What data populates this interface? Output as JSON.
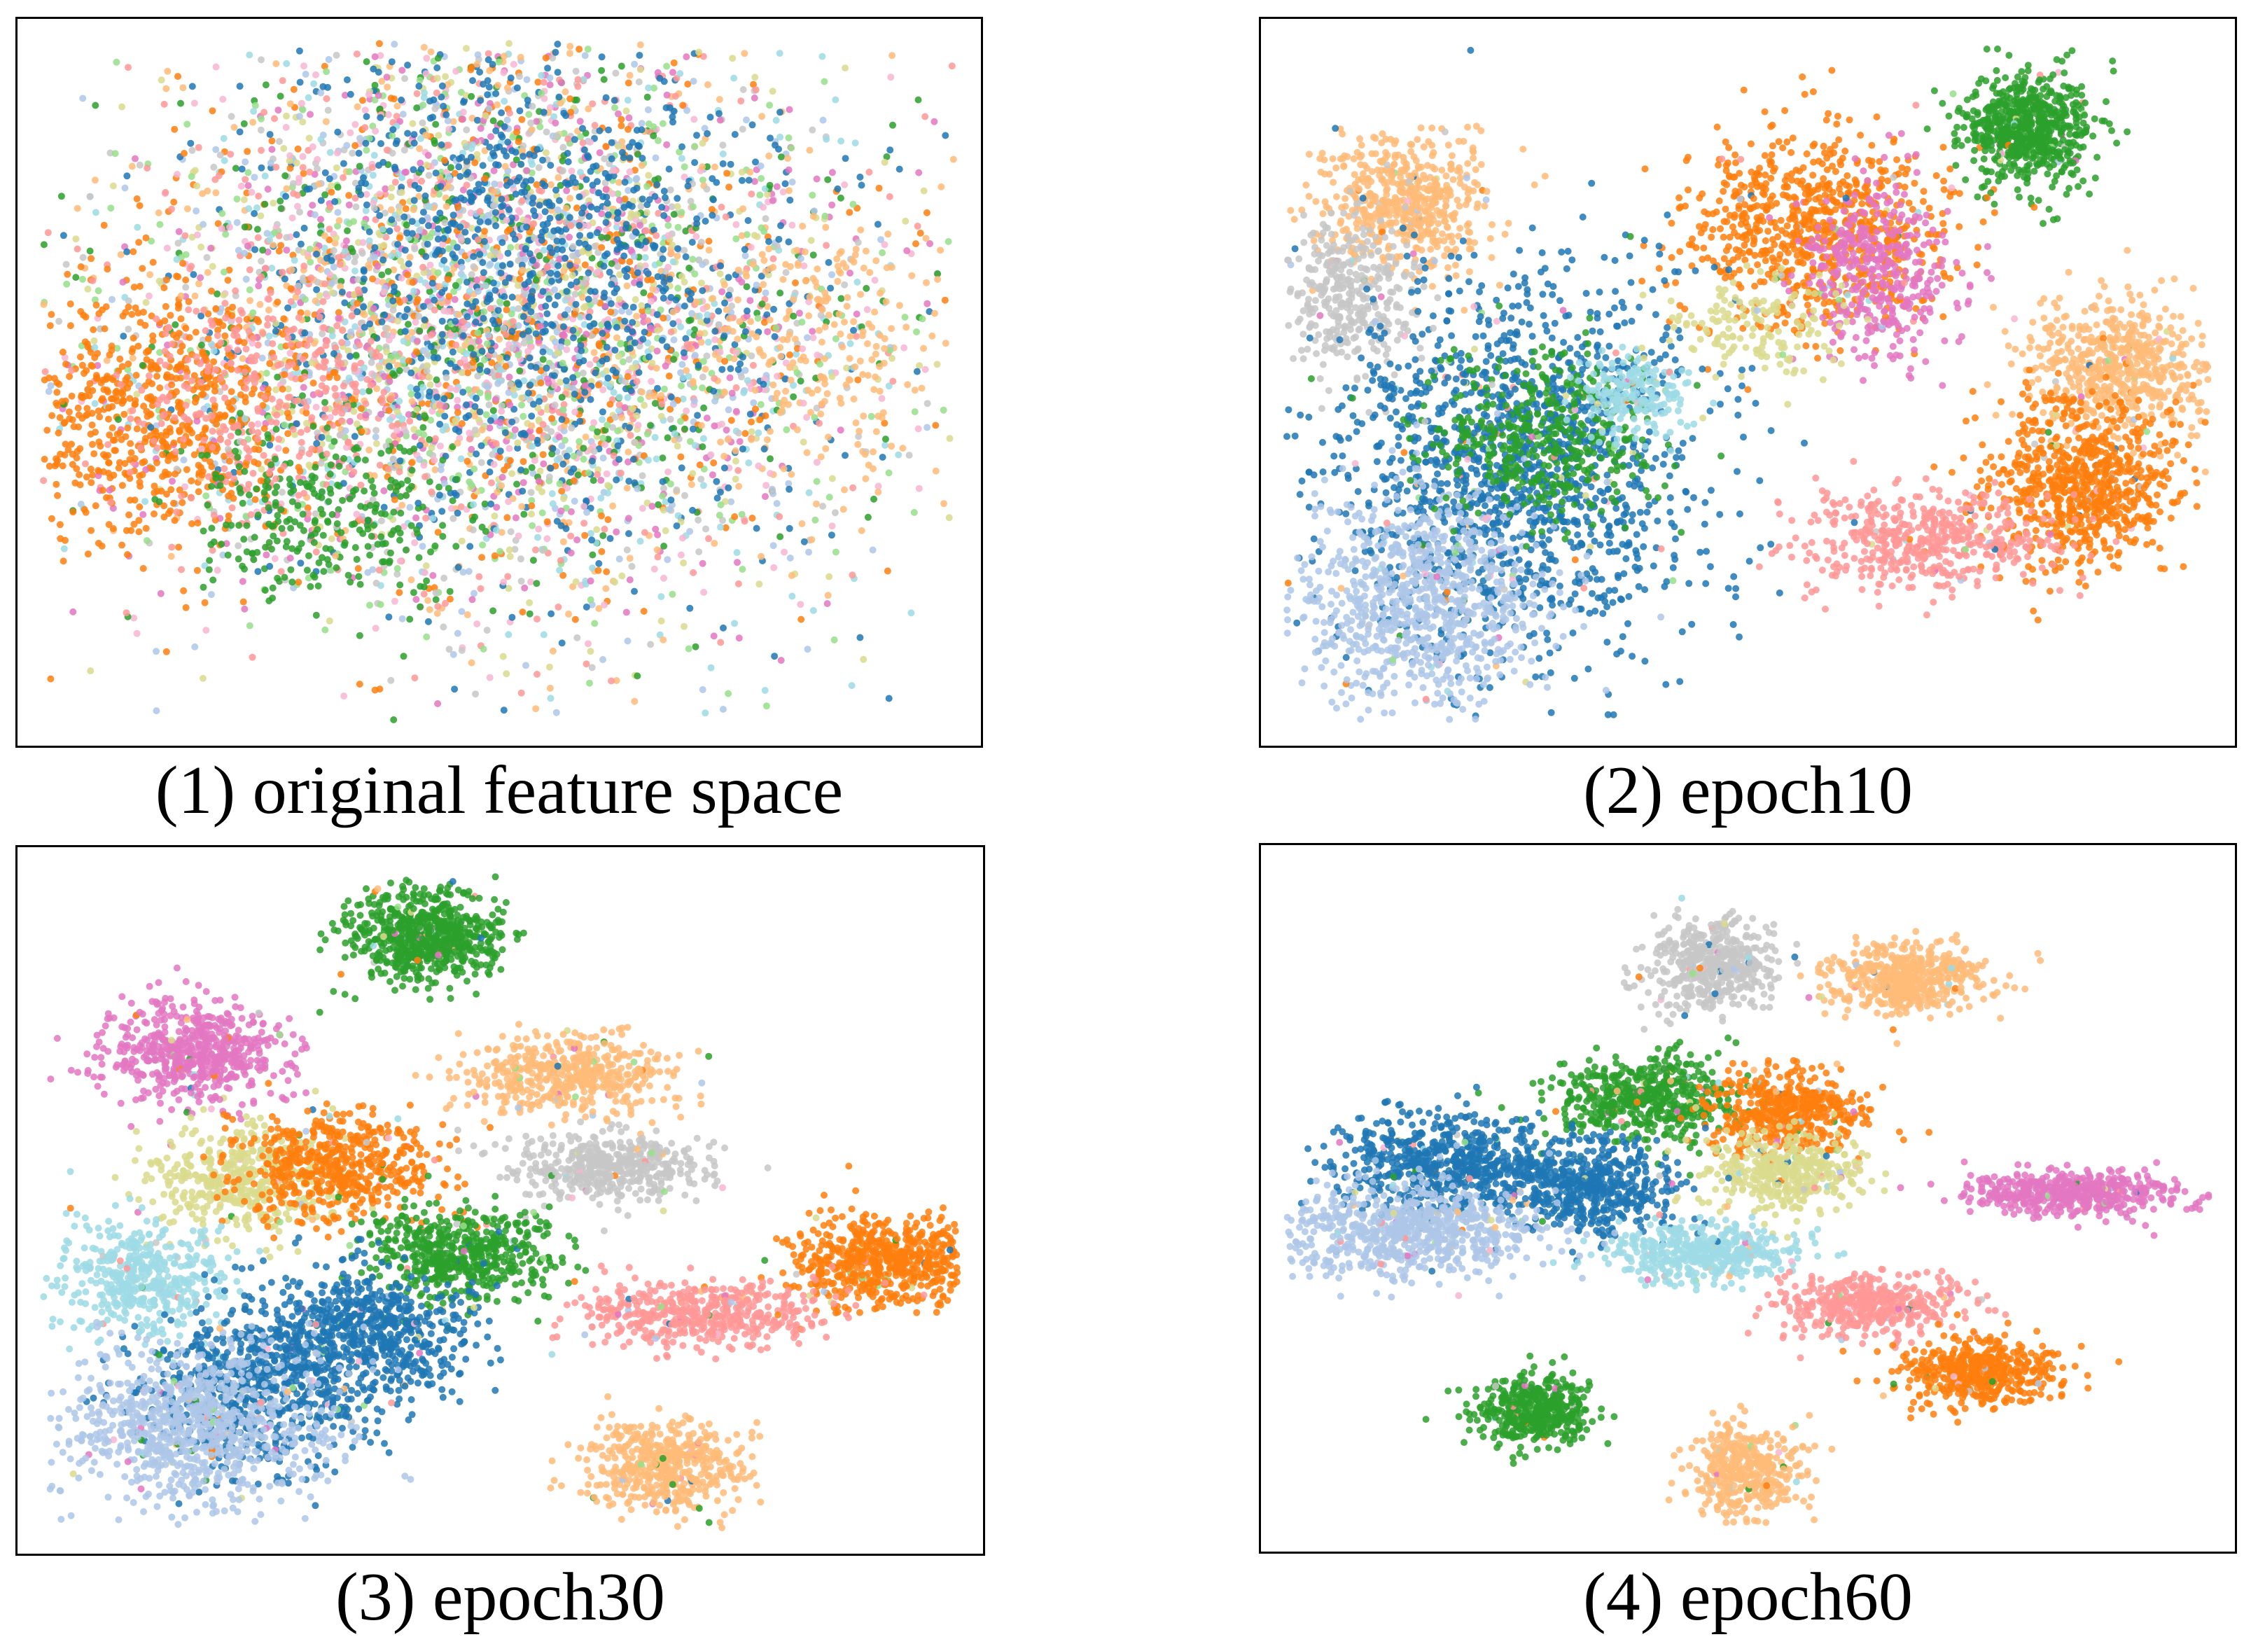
{
  "colors": {
    "blue": "#1f77b4",
    "light_blue": "#aec7e8",
    "orange": "#ff7f0e",
    "light_orange": "#ffbb78",
    "green": "#2ca02c",
    "pink": "#e377c2",
    "salmon": "#ff9896",
    "gray": "#c7c7c7",
    "olive": "#dbdb8d",
    "cyan": "#9edae5",
    "light_pink": "#f7b6d2",
    "light_green": "#98df8a"
  },
  "chart_data": [
    {
      "type": "scatter",
      "title": "(1) original feature space",
      "xlim": [
        0,
        100
      ],
      "ylim": [
        0,
        100
      ],
      "grid": false,
      "note_clusters": "cx, cy, sx, sy in data units; points drawn randomly around these centres",
      "clusters": [
        {
          "color": "mixed",
          "cx": 50,
          "cy": 60,
          "sx": 20,
          "sy": 22,
          "n": 5200
        },
        {
          "color": "orange",
          "cx": 12,
          "cy": 45,
          "sx": 8,
          "sy": 9,
          "n": 700
        },
        {
          "color": "salmon",
          "cx": 25,
          "cy": 48,
          "sx": 8,
          "sy": 10,
          "n": 300
        },
        {
          "color": "green",
          "cx": 32,
          "cy": 30,
          "sx": 8,
          "sy": 6,
          "n": 250
        },
        {
          "color": "blue",
          "cx": 55,
          "cy": 70,
          "sx": 12,
          "sy": 15,
          "n": 600
        },
        {
          "color": "light_orange",
          "cx": 85,
          "cy": 55,
          "sx": 6,
          "sy": 10,
          "n": 200
        }
      ]
    },
    {
      "type": "scatter",
      "title": "(2) epoch10",
      "xlim": [
        0,
        100
      ],
      "ylim": [
        0,
        100
      ],
      "grid": false,
      "clusters": [
        {
          "color": "green",
          "cx": 80,
          "cy": 87,
          "sx": 3.4,
          "sy": 4,
          "n": 700
        },
        {
          "color": "light_orange",
          "cx": 13,
          "cy": 76,
          "sx": 4.5,
          "sy": 5,
          "n": 550
        },
        {
          "color": "orange",
          "cx": 57,
          "cy": 72,
          "sx": 7,
          "sy": 7,
          "n": 800
        },
        {
          "color": "pink",
          "cx": 64,
          "cy": 66,
          "sx": 4,
          "sy": 6,
          "n": 400
        },
        {
          "color": "light_orange",
          "cx": 90,
          "cy": 52,
          "sx": 5,
          "sy": 5,
          "n": 600
        },
        {
          "color": "orange",
          "cx": 86,
          "cy": 35,
          "sx": 5,
          "sy": 6,
          "n": 750
        },
        {
          "color": "salmon",
          "cx": 69,
          "cy": 27,
          "sx": 7,
          "sy": 3.5,
          "n": 500
        },
        {
          "color": "gray",
          "cx": 7,
          "cy": 63,
          "sx": 3.5,
          "sy": 6,
          "n": 350
        },
        {
          "color": "blue",
          "cx": 25,
          "cy": 38,
          "sx": 10,
          "sy": 14,
          "n": 1500
        },
        {
          "color": "light_blue",
          "cx": 15,
          "cy": 18,
          "sx": 7,
          "sy": 8,
          "n": 900
        },
        {
          "color": "green",
          "cx": 28,
          "cy": 42,
          "sx": 6,
          "sy": 6,
          "n": 450
        },
        {
          "color": "cyan",
          "cx": 38,
          "cy": 48,
          "sx": 3,
          "sy": 3,
          "n": 200
        },
        {
          "color": "olive",
          "cx": 50,
          "cy": 58,
          "sx": 5,
          "sy": 4,
          "n": 150
        }
      ]
    },
    {
      "type": "scatter",
      "title": "(3) epoch30",
      "xlim": [
        0,
        100
      ],
      "ylim": [
        0,
        100
      ],
      "grid": false,
      "clusters": [
        {
          "color": "green",
          "cx": 42,
          "cy": 90,
          "sx": 4,
          "sy": 3.4,
          "n": 700
        },
        {
          "color": "pink",
          "cx": 17,
          "cy": 72,
          "sx": 5,
          "sy": 3.8,
          "n": 600
        },
        {
          "color": "light_orange",
          "cx": 57,
          "cy": 69,
          "sx": 5.5,
          "sy": 3,
          "n": 500
        },
        {
          "color": "gray",
          "cx": 62,
          "cy": 55,
          "sx": 5,
          "sy": 2.6,
          "n": 450
        },
        {
          "color": "orange",
          "cx": 92,
          "cy": 41,
          "sx": 5,
          "sy": 3.4,
          "n": 650
        },
        {
          "color": "salmon",
          "cx": 72,
          "cy": 33,
          "sx": 7,
          "sy": 2.6,
          "n": 500
        },
        {
          "color": "light_orange",
          "cx": 68,
          "cy": 10,
          "sx": 4.2,
          "sy": 3.5,
          "n": 500
        },
        {
          "color": "olive",
          "cx": 22,
          "cy": 53,
          "sx": 5,
          "sy": 4,
          "n": 450
        },
        {
          "color": "orange",
          "cx": 32,
          "cy": 55,
          "sx": 5.5,
          "sy": 4,
          "n": 550
        },
        {
          "color": "green",
          "cx": 46,
          "cy": 42,
          "sx": 5,
          "sy": 3.6,
          "n": 550
        },
        {
          "color": "cyan",
          "cx": 11,
          "cy": 38,
          "sx": 4.5,
          "sy": 4.5,
          "n": 450
        },
        {
          "color": "blue",
          "cx": 35,
          "cy": 30,
          "sx": 6,
          "sy": 5,
          "n": 700
        },
        {
          "color": "blue",
          "cx": 23,
          "cy": 22,
          "sx": 6,
          "sy": 6,
          "n": 600
        },
        {
          "color": "light_blue",
          "cx": 17,
          "cy": 16,
          "sx": 7,
          "sy": 6,
          "n": 900
        }
      ]
    },
    {
      "type": "scatter",
      "title": "(4) epoch60",
      "xlim": [
        0,
        100
      ],
      "ylim": [
        0,
        100
      ],
      "grid": false,
      "clusters": [
        {
          "color": "gray",
          "cx": 46,
          "cy": 85,
          "sx": 3.4,
          "sy": 3.2,
          "n": 500
        },
        {
          "color": "light_orange",
          "cx": 67,
          "cy": 83,
          "sx": 4.2,
          "sy": 2.6,
          "n": 500
        },
        {
          "color": "green",
          "cx": 39,
          "cy": 65,
          "sx": 5,
          "sy": 3.2,
          "n": 550
        },
        {
          "color": "orange",
          "cx": 54,
          "cy": 63,
          "sx": 4.2,
          "sy": 3.2,
          "n": 500
        },
        {
          "color": "olive",
          "cx": 54,
          "cy": 54,
          "sx": 4,
          "sy": 2.8,
          "n": 400
        },
        {
          "color": "pink",
          "cx": 85,
          "cy": 51,
          "sx": 5.5,
          "sy": 1.7,
          "n": 500
        },
        {
          "color": "blue",
          "cx": 18,
          "cy": 55,
          "sx": 6,
          "sy": 3.6,
          "n": 650
        },
        {
          "color": "blue",
          "cx": 33,
          "cy": 52,
          "sx": 4.5,
          "sy": 3.6,
          "n": 550
        },
        {
          "color": "light_blue",
          "cx": 14,
          "cy": 45,
          "sx": 7,
          "sy": 3.4,
          "n": 750
        },
        {
          "color": "cyan",
          "cx": 45,
          "cy": 42,
          "sx": 5,
          "sy": 2.2,
          "n": 450
        },
        {
          "color": "salmon",
          "cx": 63,
          "cy": 34,
          "sx": 5,
          "sy": 2.4,
          "n": 450
        },
        {
          "color": "orange",
          "cx": 75,
          "cy": 24,
          "sx": 4,
          "sy": 2.4,
          "n": 500
        },
        {
          "color": "green",
          "cx": 27,
          "cy": 18,
          "sx": 3.2,
          "sy": 2.6,
          "n": 450
        },
        {
          "color": "light_orange",
          "cx": 50,
          "cy": 9,
          "sx": 3,
          "sy": 3.4,
          "n": 400
        }
      ]
    }
  ]
}
